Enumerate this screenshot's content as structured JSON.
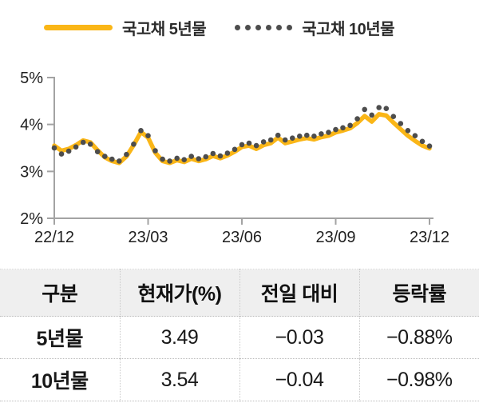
{
  "colors": {
    "series_5y": "#FAB617",
    "series_10y": "#4D4D4D",
    "axis": "#A3A3A3",
    "table_header_bg": "#EFEFEF"
  },
  "legend": {
    "items": [
      {
        "label": "국고채 5년물",
        "style": "solid"
      },
      {
        "label": "국고채 10년물",
        "style": "dotted"
      }
    ]
  },
  "chart_data": {
    "type": "line",
    "title": "",
    "xlabel": "",
    "ylabel": "",
    "ylim": [
      2,
      5
    ],
    "grid": false,
    "legend_position": "top",
    "x_tick_labels": [
      "22/12",
      "23/03",
      "23/06",
      "23/09",
      "23/12"
    ],
    "y_ticks": [
      5,
      4,
      3,
      2
    ],
    "y_tick_labels": [
      "5%",
      "4%",
      "3%",
      "2%"
    ],
    "x_note": "weekly points from 22/12 to 23/12",
    "series": [
      {
        "name": "국고채 5년물",
        "style": "solid",
        "color": "#FAB617",
        "values": [
          3.55,
          3.44,
          3.48,
          3.56,
          3.66,
          3.62,
          3.45,
          3.3,
          3.22,
          3.18,
          3.32,
          3.56,
          3.84,
          3.72,
          3.4,
          3.22,
          3.18,
          3.24,
          3.2,
          3.27,
          3.22,
          3.26,
          3.33,
          3.28,
          3.34,
          3.42,
          3.52,
          3.55,
          3.48,
          3.56,
          3.6,
          3.72,
          3.6,
          3.64,
          3.68,
          3.71,
          3.68,
          3.73,
          3.76,
          3.83,
          3.87,
          3.92,
          4.03,
          4.18,
          4.06,
          4.22,
          4.19,
          4.04,
          3.9,
          3.76,
          3.65,
          3.55,
          3.49
        ]
      },
      {
        "name": "국고채 10년물",
        "style": "dotted",
        "color": "#4D4D4D",
        "values": [
          3.5,
          3.37,
          3.43,
          3.52,
          3.62,
          3.58,
          3.42,
          3.32,
          3.26,
          3.22,
          3.36,
          3.58,
          3.87,
          3.76,
          3.44,
          3.26,
          3.22,
          3.28,
          3.25,
          3.32,
          3.27,
          3.31,
          3.38,
          3.33,
          3.39,
          3.47,
          3.57,
          3.6,
          3.55,
          3.63,
          3.67,
          3.77,
          3.67,
          3.71,
          3.75,
          3.77,
          3.75,
          3.8,
          3.83,
          3.89,
          3.93,
          3.98,
          4.12,
          4.32,
          4.2,
          4.36,
          4.34,
          4.17,
          4.02,
          3.87,
          3.76,
          3.64,
          3.54
        ]
      }
    ]
  },
  "table": {
    "headers": [
      "구분",
      "현재가(%)",
      "전일 대비",
      "등락률"
    ],
    "rows": [
      {
        "label": "5년물",
        "price": "3.49",
        "change": "−0.03",
        "pct": "−0.88%"
      },
      {
        "label": "10년물",
        "price": "3.54",
        "change": "−0.04",
        "pct": "−0.98%"
      }
    ]
  }
}
